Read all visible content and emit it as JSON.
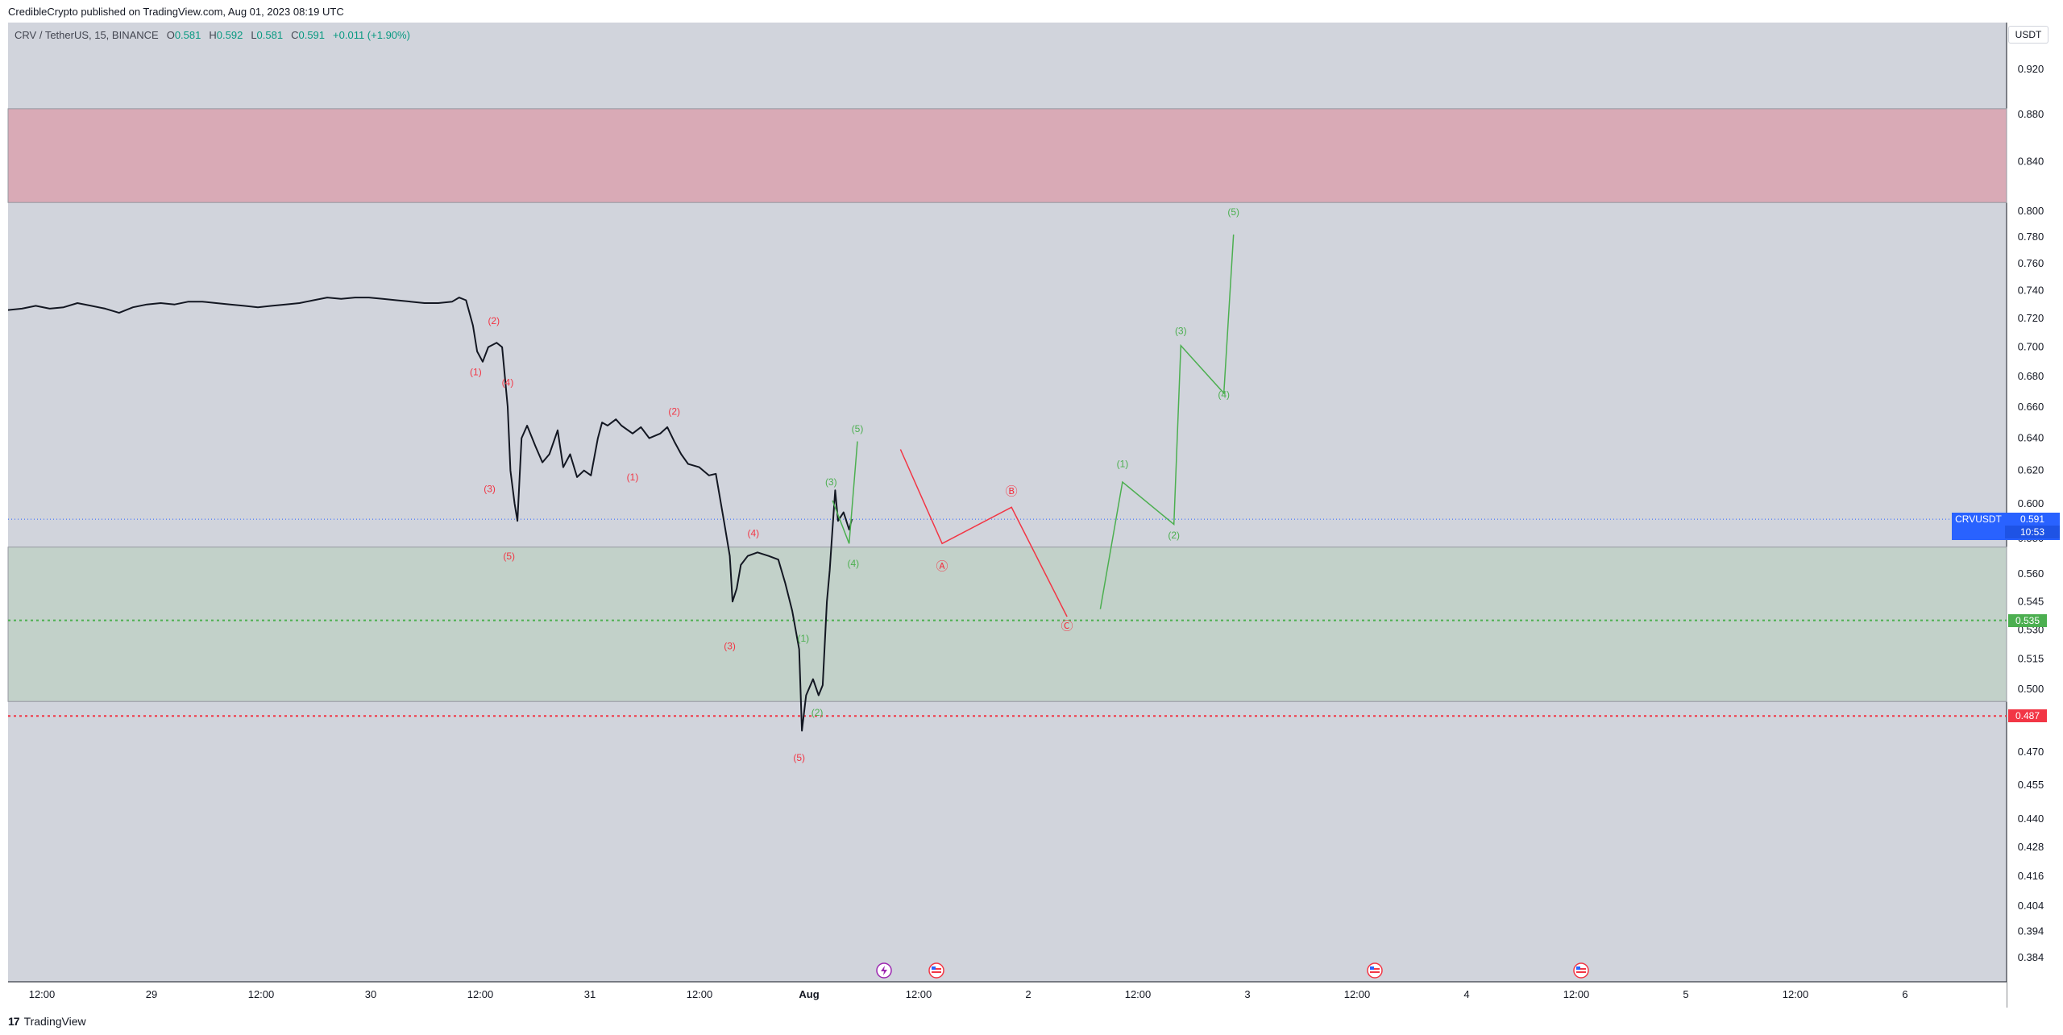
{
  "header": {
    "publish_line": "CredibleCrypto published on TradingView.com, Aug 01, 2023 08:19 UTC"
  },
  "legend": {
    "symbol": "CRV / TetherUS, 15, BINANCE",
    "open_label": "O",
    "open": "0.581",
    "high_label": "H",
    "high": "0.592",
    "low_label": "L",
    "low": "0.581",
    "close_label": "C",
    "close": "0.591",
    "change": "+0.011 (+1.90%)"
  },
  "currency_button": "USDT",
  "footer": {
    "brand": "TradingView"
  },
  "colors": {
    "plot_bg": "#d1d4dc",
    "bull_wave": "#4caf50",
    "bear_wave": "#f23645",
    "resistance_zone": "#d9aab6",
    "support_zone": "#c2d1c9",
    "price_tag": "#2962ff",
    "support_tag": "#4caf50",
    "stop_tag": "#f23645"
  },
  "icons": [
    "lightning-icon",
    "us-flag-icon"
  ],
  "chart_data": {
    "type": "line",
    "price_axis_ticks": [
      "0.920",
      "0.880",
      "0.840",
      "0.800",
      "0.780",
      "0.760",
      "0.740",
      "0.720",
      "0.700",
      "0.680",
      "0.660",
      "0.640",
      "0.620",
      "0.600",
      "0.580",
      "0.560",
      "0.545",
      "0.530",
      "0.515",
      "0.500",
      "0.487",
      "0.470",
      "0.455",
      "0.440",
      "0.428",
      "0.416",
      "0.404",
      "0.394",
      "0.384"
    ],
    "time_axis_ticks": [
      "12:00",
      "29",
      "12:00",
      "30",
      "12:00",
      "31",
      "12:00",
      "Aug",
      "12:00",
      "2",
      "12:00",
      "3",
      "12:00",
      "4",
      "12:00",
      "5",
      "12:00",
      "6"
    ],
    "current_price": {
      "symbol": "CRVUSDT",
      "value": "0.591",
      "countdown": "10:53"
    },
    "levels": [
      {
        "label": "0.535",
        "style": "dotted",
        "color": "#4caf50",
        "value": 0.535
      },
      {
        "label": "0.487",
        "style": "dotted",
        "color": "#f23645",
        "value": 0.487
      }
    ],
    "zones": [
      {
        "kind": "resistance",
        "from": 0.807,
        "to": 0.885
      },
      {
        "kind": "support",
        "from": 0.494,
        "to": 0.575
      }
    ],
    "price_series": [
      [
        0,
        0.726
      ],
      [
        10,
        0.727
      ],
      [
        20,
        0.729
      ],
      [
        30,
        0.727
      ],
      [
        40,
        0.728
      ],
      [
        50,
        0.731
      ],
      [
        60,
        0.729
      ],
      [
        70,
        0.727
      ],
      [
        80,
        0.724
      ],
      [
        90,
        0.728
      ],
      [
        100,
        0.73
      ],
      [
        110,
        0.731
      ],
      [
        120,
        0.73
      ],
      [
        130,
        0.732
      ],
      [
        140,
        0.732
      ],
      [
        150,
        0.731
      ],
      [
        160,
        0.73
      ],
      [
        170,
        0.729
      ],
      [
        180,
        0.728
      ],
      [
        190,
        0.729
      ],
      [
        200,
        0.73
      ],
      [
        210,
        0.731
      ],
      [
        220,
        0.733
      ],
      [
        230,
        0.735
      ],
      [
        240,
        0.734
      ],
      [
        250,
        0.735
      ],
      [
        260,
        0.735
      ],
      [
        270,
        0.734
      ],
      [
        280,
        0.733
      ],
      [
        290,
        0.732
      ],
      [
        300,
        0.731
      ],
      [
        310,
        0.731
      ],
      [
        320,
        0.732
      ],
      [
        325,
        0.735
      ],
      [
        330,
        0.733
      ],
      [
        335,
        0.715
      ],
      [
        338,
        0.697
      ],
      [
        342,
        0.69
      ],
      [
        346,
        0.7
      ],
      [
        352,
        0.703
      ],
      [
        356,
        0.7
      ],
      [
        360,
        0.66
      ],
      [
        362,
        0.62
      ],
      [
        365,
        0.6
      ],
      [
        367,
        0.59
      ],
      [
        370,
        0.64
      ],
      [
        374,
        0.648
      ],
      [
        380,
        0.635
      ],
      [
        385,
        0.625
      ],
      [
        390,
        0.63
      ],
      [
        396,
        0.645
      ],
      [
        400,
        0.622
      ],
      [
        405,
        0.63
      ],
      [
        410,
        0.616
      ],
      [
        415,
        0.62
      ],
      [
        420,
        0.617
      ],
      [
        425,
        0.64
      ],
      [
        428,
        0.65
      ],
      [
        432,
        0.648
      ],
      [
        438,
        0.652
      ],
      [
        442,
        0.648
      ],
      [
        450,
        0.643
      ],
      [
        456,
        0.647
      ],
      [
        462,
        0.64
      ],
      [
        470,
        0.643
      ],
      [
        475,
        0.647
      ],
      [
        480,
        0.638
      ],
      [
        485,
        0.63
      ],
      [
        490,
        0.624
      ],
      [
        498,
        0.622
      ],
      [
        505,
        0.617
      ],
      [
        510,
        0.618
      ],
      [
        512,
        0.608
      ],
      [
        516,
        0.589
      ],
      [
        520,
        0.57
      ],
      [
        522,
        0.545
      ],
      [
        525,
        0.552
      ],
      [
        528,
        0.565
      ],
      [
        533,
        0.57
      ],
      [
        540,
        0.572
      ],
      [
        548,
        0.57
      ],
      [
        555,
        0.568
      ],
      [
        560,
        0.555
      ],
      [
        565,
        0.54
      ],
      [
        570,
        0.52
      ],
      [
        572,
        0.48
      ],
      [
        575,
        0.497
      ],
      [
        580,
        0.505
      ],
      [
        584,
        0.497
      ],
      [
        587,
        0.502
      ],
      [
        590,
        0.545
      ],
      [
        592,
        0.562
      ],
      [
        594,
        0.585
      ],
      [
        596,
        0.608
      ],
      [
        598,
        0.59
      ],
      [
        602,
        0.595
      ],
      [
        606,
        0.585
      ],
      [
        608,
        0.591
      ]
    ],
    "wave_labels": [
      {
        "text": "(2)",
        "x": 350,
        "y": 0.716,
        "color": "red"
      },
      {
        "text": "(1)",
        "x": 337,
        "y": 0.681,
        "color": "red"
      },
      {
        "text": "(4)",
        "x": 360,
        "y": 0.674,
        "color": "red"
      },
      {
        "text": "(3)",
        "x": 347,
        "y": 0.607,
        "color": "red"
      },
      {
        "text": "(5)",
        "x": 361,
        "y": 0.568,
        "color": "red"
      },
      {
        "text": "(2)",
        "x": 480,
        "y": 0.655,
        "color": "red"
      },
      {
        "text": "(1)",
        "x": 450,
        "y": 0.614,
        "color": "red"
      },
      {
        "text": "(4)",
        "x": 537,
        "y": 0.581,
        "color": "red"
      },
      {
        "text": "(3)",
        "x": 520,
        "y": 0.52,
        "color": "red"
      },
      {
        "text": "(5)",
        "x": 570,
        "y": 0.466,
        "color": "red"
      },
      {
        "text": "(1)",
        "x": 573,
        "y": 0.524,
        "color": "green"
      },
      {
        "text": "(2)",
        "x": 583,
        "y": 0.487,
        "color": "green"
      },
      {
        "text": "(3)",
        "x": 593,
        "y": 0.611,
        "color": "green"
      },
      {
        "text": "(4)",
        "x": 609,
        "y": 0.564,
        "color": "green"
      },
      {
        "text": "(5)",
        "x": 612,
        "y": 0.644,
        "color": "green"
      },
      {
        "text": "Ⓐ",
        "x": 673,
        "y": 0.562,
        "color": "red"
      },
      {
        "text": "Ⓑ",
        "x": 723,
        "y": 0.605,
        "color": "red"
      },
      {
        "text": "Ⓒ",
        "x": 763,
        "y": 0.53,
        "color": "red"
      },
      {
        "text": "(1)",
        "x": 803,
        "y": 0.622,
        "color": "green"
      },
      {
        "text": "(2)",
        "x": 840,
        "y": 0.58,
        "color": "green"
      },
      {
        "text": "(3)",
        "x": 845,
        "y": 0.709,
        "color": "green"
      },
      {
        "text": "(4)",
        "x": 876,
        "y": 0.666,
        "color": "green"
      },
      {
        "text": "(5)",
        "x": 883,
        "y": 0.797,
        "color": "green"
      }
    ],
    "projection_red": [
      [
        643,
        0.633
      ],
      [
        673,
        0.577
      ],
      [
        723,
        0.598
      ],
      [
        763,
        0.537
      ]
    ],
    "projection_green_small": [
      [
        594,
        0.602
      ],
      [
        606,
        0.577
      ],
      [
        612,
        0.638
      ]
    ],
    "projection_green_big": [
      [
        787,
        0.541
      ],
      [
        803,
        0.613
      ],
      [
        840,
        0.588
      ],
      [
        845,
        0.701
      ],
      [
        876,
        0.669
      ],
      [
        883,
        0.782
      ]
    ],
    "x_range": [
      0,
      1440
    ],
    "y_scale": "log",
    "grid": false,
    "legend": "top-left"
  }
}
